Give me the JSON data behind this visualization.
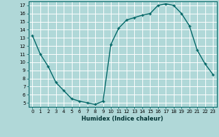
{
  "x": [
    0,
    1,
    2,
    3,
    4,
    5,
    6,
    7,
    8,
    9,
    10,
    11,
    12,
    13,
    14,
    15,
    16,
    17,
    18,
    19,
    20,
    21,
    22,
    23
  ],
  "y": [
    13.3,
    11.0,
    9.5,
    7.5,
    6.5,
    5.5,
    5.2,
    5.0,
    4.8,
    5.2,
    12.2,
    14.2,
    15.2,
    15.5,
    15.8,
    16.0,
    17.0,
    17.2,
    17.0,
    16.0,
    14.5,
    11.5,
    9.8,
    8.5
  ],
  "line_color": "#006666",
  "marker": "+",
  "marker_size": 3,
  "marker_color": "#006666",
  "bg_color": "#b0d8d8",
  "grid_color": "#ffffff",
  "xlabel": "Humidex (Indice chaleur)",
  "xlim": [
    -0.5,
    23.5
  ],
  "ylim": [
    4.5,
    17.5
  ],
  "yticks": [
    5,
    6,
    7,
    8,
    9,
    10,
    11,
    12,
    13,
    14,
    15,
    16,
    17
  ],
  "xticks": [
    0,
    1,
    2,
    3,
    4,
    5,
    6,
    7,
    8,
    9,
    10,
    11,
    12,
    13,
    14,
    15,
    16,
    17,
    18,
    19,
    20,
    21,
    22,
    23
  ],
  "xlabel_fontsize": 6.0,
  "tick_fontsize": 5.0,
  "linewidth": 1.0
}
